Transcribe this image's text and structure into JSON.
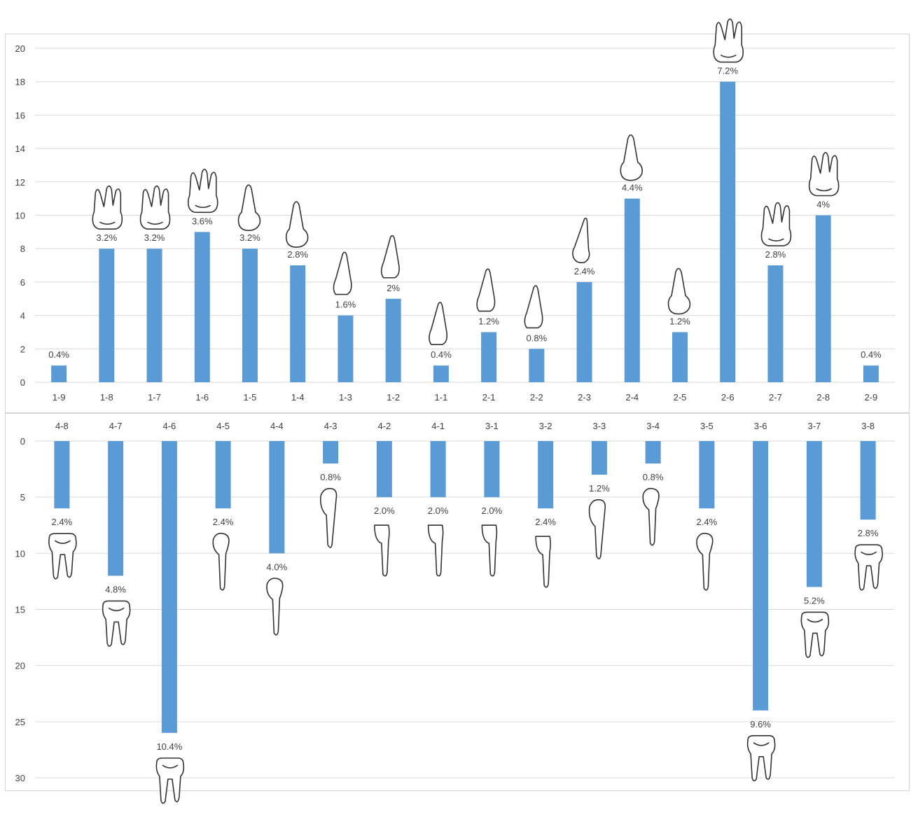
{
  "colors": {
    "bar": "#5B9BD5",
    "grid": "#D9D9D9",
    "frame": "#D4D4D4",
    "text": "#404040",
    "tooth_outline": "#333333"
  },
  "chart_data": [
    {
      "type": "bar",
      "name": "upper",
      "categories": [
        "1-9",
        "1-8",
        "1-7",
        "1-6",
        "1-5",
        "1-4",
        "1-3",
        "1-2",
        "1-1",
        "2-1",
        "2-2",
        "2-3",
        "2-4",
        "2-5",
        "2-6",
        "2-7",
        "2-8",
        "2-9"
      ],
      "values": [
        1,
        8,
        8,
        9,
        8,
        7,
        4,
        5,
        1,
        3,
        2,
        6,
        11,
        3,
        18,
        7,
        10,
        1
      ],
      "data_labels": [
        "0.4%",
        "3.2%",
        "3.2%",
        "3.6%",
        "3.2%",
        "2.8%",
        "1.6%",
        "2%",
        "0.4%",
        "1.2%",
        "0.8%",
        "2.4%",
        "4.4%",
        "1.2%",
        "7.2%",
        "2.8%",
        "4%",
        "0.4%"
      ],
      "tooth_icons": [
        "none",
        "molar-icon",
        "molar-icon",
        "molar-icon",
        "premolar-icon",
        "premolar-icon",
        "incisor-icon",
        "incisor-icon",
        "incisor-icon",
        "incisor-icon",
        "incisor-icon",
        "canine-icon",
        "premolar-icon",
        "premolar-icon",
        "molar-icon",
        "molar-icon",
        "molar-icon",
        "none"
      ],
      "yticks": [
        0,
        2,
        4,
        6,
        8,
        10,
        12,
        14,
        16,
        18,
        20
      ],
      "ylim": [
        0,
        20
      ],
      "grid": true
    },
    {
      "type": "bar",
      "name": "lower",
      "categories": [
        "4-8",
        "4-7",
        "4-6",
        "4-5",
        "4-4",
        "4-3",
        "4-2",
        "4-1",
        "3-1",
        "3-2",
        "3-3",
        "3-4",
        "3-5",
        "3-6",
        "3-7",
        "3-8"
      ],
      "values": [
        6,
        12,
        26,
        6,
        10,
        2,
        5,
        5,
        5,
        6,
        3,
        2,
        6,
        24,
        13,
        7
      ],
      "data_labels": [
        "2.4%",
        "4.8%",
        "10.4%",
        "2.4%",
        "4.0%",
        "0.8%",
        "2.0%",
        "2.0%",
        "2.0%",
        "2.4%",
        "1.2%",
        "0.8%",
        "2.4%",
        "9.6%",
        "5.2%",
        "2.8%"
      ],
      "tooth_icons": [
        "lower-molar-icon",
        "lower-molar-icon",
        "lower-molar-icon",
        "lower-premolar-icon",
        "lower-premolar-icon",
        "lower-canine-icon",
        "lower-incisor-icon",
        "lower-incisor-icon",
        "lower-incisor-icon",
        "lower-incisor-icon",
        "lower-canine-icon",
        "lower-premolar-icon",
        "lower-premolar-icon",
        "lower-molar-icon",
        "lower-molar-icon",
        "lower-molar-icon"
      ],
      "yticks": [
        0,
        5,
        10,
        15,
        20,
        25,
        30
      ],
      "ylim": [
        0,
        30
      ],
      "inverted": true,
      "grid": true
    }
  ]
}
